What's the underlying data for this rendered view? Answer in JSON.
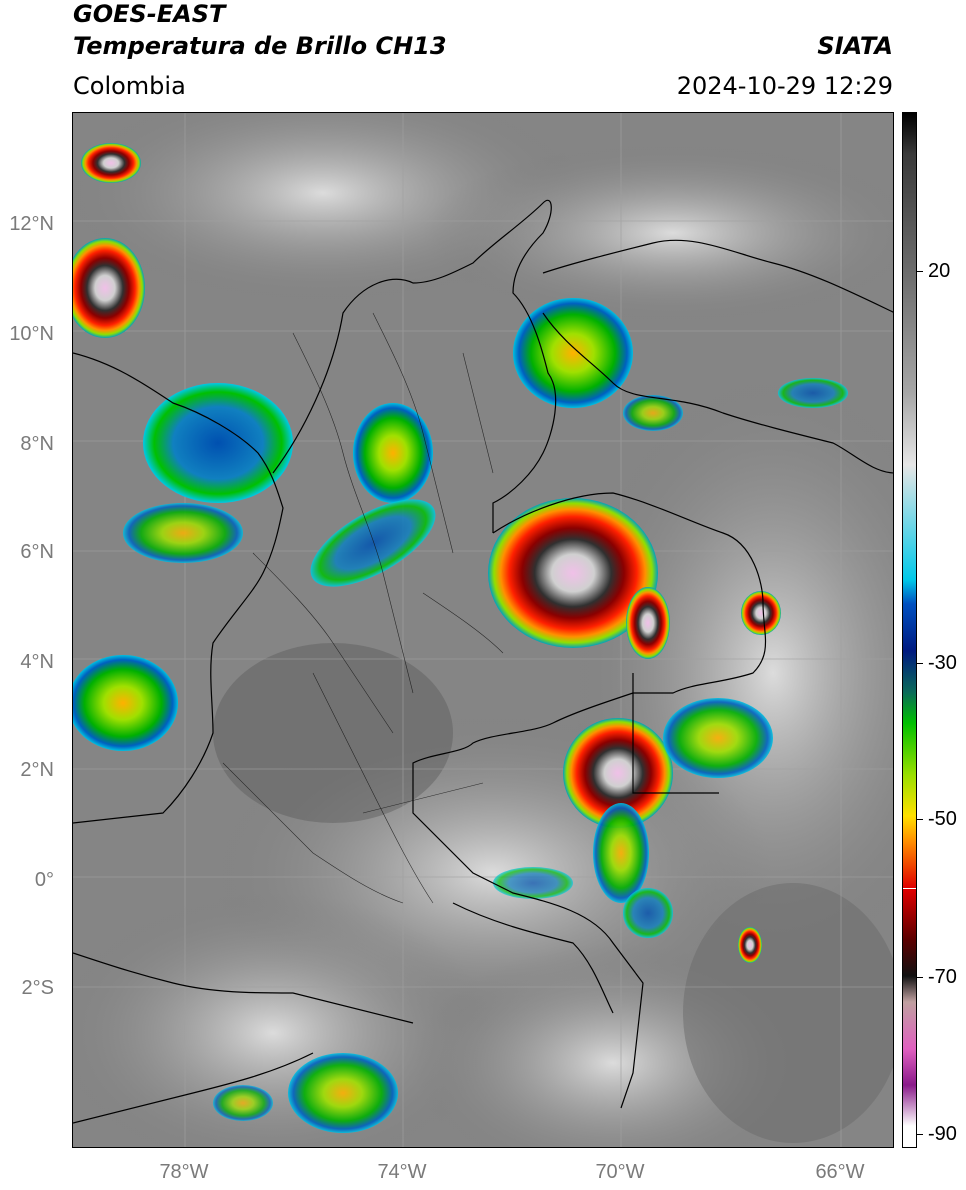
{
  "header": {
    "satellite": "GOES-EAST",
    "product": "Temperatura de Brillo CH13",
    "agency": "SIATA",
    "region": "Colombia",
    "timestamp": "2024-10-29 12:29"
  },
  "map": {
    "lat_labels": [
      "12°N",
      "10°N",
      "8°N",
      "6°N",
      "4°N",
      "2°N",
      "0°",
      "2°S"
    ],
    "lon_labels": [
      "78°W",
      "74°W",
      "70°W",
      "66°W"
    ]
  },
  "colorbar": {
    "unit_scale": "°C",
    "tick_labels": [
      "20",
      "-30",
      "-50",
      "-70",
      "-90"
    ],
    "stops": [
      {
        "color": "#000000"
      },
      {
        "color": "#3a3a3a"
      },
      {
        "color": "#6f6f6f"
      },
      {
        "color": "#a6a6a6"
      },
      {
        "color": "#e6e6e6"
      },
      {
        "color": "#00c8e8"
      },
      {
        "color": "#0050c0"
      },
      {
        "color": "#001a80"
      },
      {
        "color": "#0a6a5a"
      },
      {
        "color": "#00c000"
      },
      {
        "color": "#9adf00"
      },
      {
        "color": "#ffe000"
      },
      {
        "color": "#ff8c00"
      },
      {
        "color": "#e00000"
      },
      {
        "color": "#5a0000"
      },
      {
        "color": "#111111"
      },
      {
        "color": "#c0a0a0"
      },
      {
        "color": "#e060c0"
      },
      {
        "color": "#8a1a8a"
      },
      {
        "color": "#ffffff"
      }
    ]
  }
}
